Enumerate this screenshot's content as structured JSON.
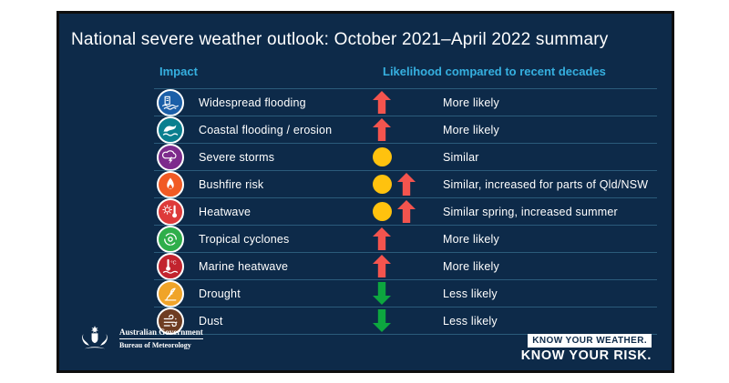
{
  "slide": {
    "title": "National severe weather outlook: October 2021–April 2022 summary",
    "table": {
      "headers": {
        "impact": "Impact",
        "likelihood": "Likelihood compared to recent decades"
      },
      "rows": [
        {
          "impact": "Widespread flooding",
          "icon": "widespread-flooding-icon",
          "icon_color": "#1b5fa8",
          "indicators": [
            "up-arrow"
          ],
          "likelihood": "More likely"
        },
        {
          "impact": "Coastal flooding / erosion",
          "icon": "coastal-flooding-icon",
          "icon_color": "#0a7f8f",
          "indicators": [
            "up-arrow"
          ],
          "likelihood": "More likely"
        },
        {
          "impact": "Severe storms",
          "icon": "severe-storms-icon",
          "icon_color": "#7d2b8c",
          "indicators": [
            "similar-circle"
          ],
          "likelihood": "Similar"
        },
        {
          "impact": "Bushfire risk",
          "icon": "bushfire-icon",
          "icon_color": "#f15a24",
          "indicators": [
            "similar-circle",
            "up-arrow"
          ],
          "likelihood": "Similar, increased for parts of Qld/NSW"
        },
        {
          "impact": "Heatwave",
          "icon": "heatwave-icon",
          "icon_color": "#de3a3a",
          "indicators": [
            "similar-circle",
            "up-arrow"
          ],
          "likelihood": "Similar spring, increased summer"
        },
        {
          "impact": "Tropical cyclones",
          "icon": "tropical-cyclone-icon",
          "icon_color": "#2fae4a",
          "indicators": [
            "up-arrow"
          ],
          "likelihood": "More likely"
        },
        {
          "impact": "Marine heatwave",
          "icon": "marine-heatwave-icon",
          "icon_color": "#c2242e",
          "indicators": [
            "up-arrow"
          ],
          "likelihood": "More likely"
        },
        {
          "impact": "Drought",
          "icon": "drought-icon",
          "icon_color": "#f0a429",
          "indicators": [
            "down-arrow"
          ],
          "likelihood": "Less likely"
        },
        {
          "impact": "Dust",
          "icon": "dust-icon",
          "icon_color": "#6e3d22",
          "indicators": [
            "down-arrow"
          ],
          "likelihood": "Less likely"
        }
      ]
    },
    "footer": {
      "gov_line1": "Australian Government",
      "gov_line2": "Bureau of Meteorology",
      "tagline_top": "KNOW YOUR WEATHER.",
      "tagline_bottom": "KNOW YOUR RISK."
    },
    "colors": {
      "background": "#0d2a49",
      "header_accent": "#36b0e0",
      "up_arrow": "#f4544e",
      "down_arrow": "#0da63f",
      "similar_circle": "#ffc20e"
    }
  }
}
